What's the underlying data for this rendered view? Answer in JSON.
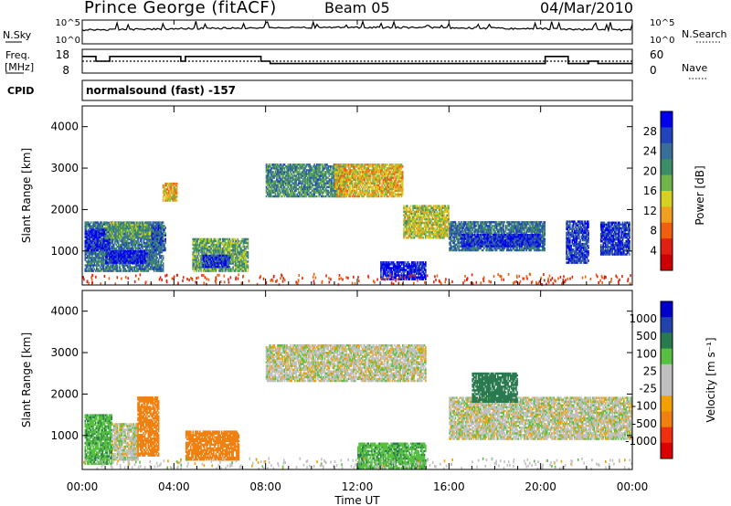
{
  "header": {
    "station": "Prince George (fitACF)",
    "beam": "Beam 05",
    "date": "04/Mar/2010"
  },
  "side_labels": {
    "nsky": "N.Sky",
    "nsearch": "N.Search",
    "freq_1": "Freq.",
    "freq_2": "[MHz]",
    "nave": "Nave",
    "cpid": "CPID"
  },
  "nsky_panel": {
    "left_ticks": [
      "10^5",
      "10^0"
    ],
    "right_ticks": [
      "10^5",
      "10^0"
    ]
  },
  "freq_panel": {
    "left_ticks": [
      "18",
      "8"
    ],
    "right_ticks": [
      "60",
      "0"
    ],
    "freq_trace": [
      [
        0,
        15
      ],
      [
        0.6,
        15
      ],
      [
        0.6,
        13
      ],
      [
        1.2,
        13
      ],
      [
        1.2,
        15
      ],
      [
        4.3,
        15
      ],
      [
        4.3,
        13
      ],
      [
        4.5,
        13
      ],
      [
        4.5,
        15
      ],
      [
        7.8,
        15
      ],
      [
        7.8,
        13
      ],
      [
        8.2,
        13
      ],
      [
        8.2,
        12
      ],
      [
        20.2,
        12
      ],
      [
        20.2,
        15
      ],
      [
        21.2,
        15
      ],
      [
        21.2,
        12
      ],
      [
        22.1,
        12
      ],
      [
        22.1,
        13
      ],
      [
        22.5,
        13
      ],
      [
        22.5,
        12
      ],
      [
        24,
        12
      ]
    ],
    "nave_level": 13
  },
  "cpid": {
    "text": "normalsound (fast) -157"
  },
  "power_panel": {
    "ylabel": "Slant Range [km]",
    "yticks": [
      "4000",
      "3000",
      "2000",
      "1000"
    ],
    "colorbar_label": "Power [dB]",
    "colorbar_ticks": [
      "28",
      "24",
      "20",
      "16",
      "12",
      "8",
      "4"
    ],
    "colorbar_colors": [
      "#0000ee",
      "#2244bb",
      "#3a6e9a",
      "#3c8c68",
      "#6fb54a",
      "#d6d020",
      "#f0a020",
      "#ee6010",
      "#e02010",
      "#cc0000"
    ]
  },
  "velocity_panel": {
    "ylabel": "Slant Range [km]",
    "yticks": [
      "4000",
      "3000",
      "2000",
      "1000"
    ],
    "colorbar_label": "Velocity [m s⁻¹]",
    "colorbar_ticks": [
      "1000",
      "500",
      "100",
      "25",
      "-25",
      "-100",
      "-500",
      "-1000"
    ],
    "colorbar_colors": [
      "#0000cc",
      "#2244aa",
      "#2a7a50",
      "#58c040",
      "#c0c0c0",
      "#c0c0c0",
      "#f0a000",
      "#f08010",
      "#ee3010",
      "#dd0000"
    ]
  },
  "x_axis": {
    "ticks": [
      "00:00",
      "04:00",
      "08:00",
      "12:00",
      "16:00",
      "20:00",
      "00:00"
    ],
    "label": "Time UT"
  },
  "chart_data": {
    "type": "heatmap",
    "x_range_hours": [
      0,
      24
    ],
    "y_range_km": [
      180,
      4500
    ],
    "x_unit": "hours UT",
    "y_unit": "km",
    "power_dB_range": [
      0,
      30
    ],
    "velocity_range_m_s": [
      -1000,
      1000
    ],
    "power_regions": [
      {
        "t0": 0.1,
        "t1": 3.5,
        "r0": 500,
        "r1": 1700,
        "level": 22
      },
      {
        "t0": 0.1,
        "t1": 1.2,
        "r0": 1000,
        "r1": 1500,
        "level": 27
      },
      {
        "t0": 1.0,
        "t1": 2.8,
        "r0": 700,
        "r1": 1000,
        "level": 28
      },
      {
        "t0": 1.0,
        "t1": 3.0,
        "r0": 1300,
        "r1": 1700,
        "level": 18
      },
      {
        "t0": 3.0,
        "t1": 3.6,
        "r0": 1000,
        "r1": 1600,
        "level": 24
      },
      {
        "t0": 3.5,
        "t1": 4.1,
        "r0": 2200,
        "r1": 2650,
        "level": 12
      },
      {
        "t0": 4.8,
        "t1": 7.2,
        "r0": 500,
        "r1": 1300,
        "level": 18
      },
      {
        "t0": 5.2,
        "t1": 6.4,
        "r0": 600,
        "r1": 900,
        "level": 26
      },
      {
        "t0": 8.0,
        "t1": 11.5,
        "r0": 2300,
        "r1": 3100,
        "level": 20
      },
      {
        "t0": 11.0,
        "t1": 14.0,
        "r0": 2300,
        "r1": 3100,
        "level": 12
      },
      {
        "t0": 13.0,
        "t1": 15.0,
        "r0": 300,
        "r1": 750,
        "level": 28
      },
      {
        "t0": 14.0,
        "t1": 16.0,
        "r0": 1300,
        "r1": 2100,
        "level": 14
      },
      {
        "t0": 16.0,
        "t1": 20.2,
        "r0": 1000,
        "r1": 1700,
        "level": 22
      },
      {
        "t0": 16.5,
        "t1": 20.0,
        "r0": 1100,
        "r1": 1400,
        "level": 27
      },
      {
        "t0": 21.1,
        "t1": 22.1,
        "r0": 700,
        "r1": 1700,
        "level": 26
      },
      {
        "t0": 22.6,
        "t1": 23.9,
        "r0": 900,
        "r1": 1700,
        "level": 26
      }
    ],
    "velocity_regions": [
      {
        "t0": 0.1,
        "t1": 1.3,
        "r0": 300,
        "r1": 1500,
        "v": 80
      },
      {
        "t0": 1.3,
        "t1": 2.4,
        "r0": 400,
        "r1": 1300,
        "v": 0
      },
      {
        "t0": 2.4,
        "t1": 3.3,
        "r0": 500,
        "r1": 1900,
        "v": -300
      },
      {
        "t0": 4.5,
        "t1": 6.8,
        "r0": 400,
        "r1": 1100,
        "v": -250
      },
      {
        "t0": 8.0,
        "t1": 15.0,
        "r0": 2300,
        "r1": 3200,
        "v": 0
      },
      {
        "t0": 12.0,
        "t1": 15.0,
        "r0": 200,
        "r1": 800,
        "v": 80
      },
      {
        "t0": 16.0,
        "t1": 24.0,
        "r0": 900,
        "r1": 1900,
        "v": 0
      },
      {
        "t0": 17.0,
        "t1": 19.0,
        "r0": 1800,
        "r1": 2500,
        "v": 150
      }
    ]
  }
}
